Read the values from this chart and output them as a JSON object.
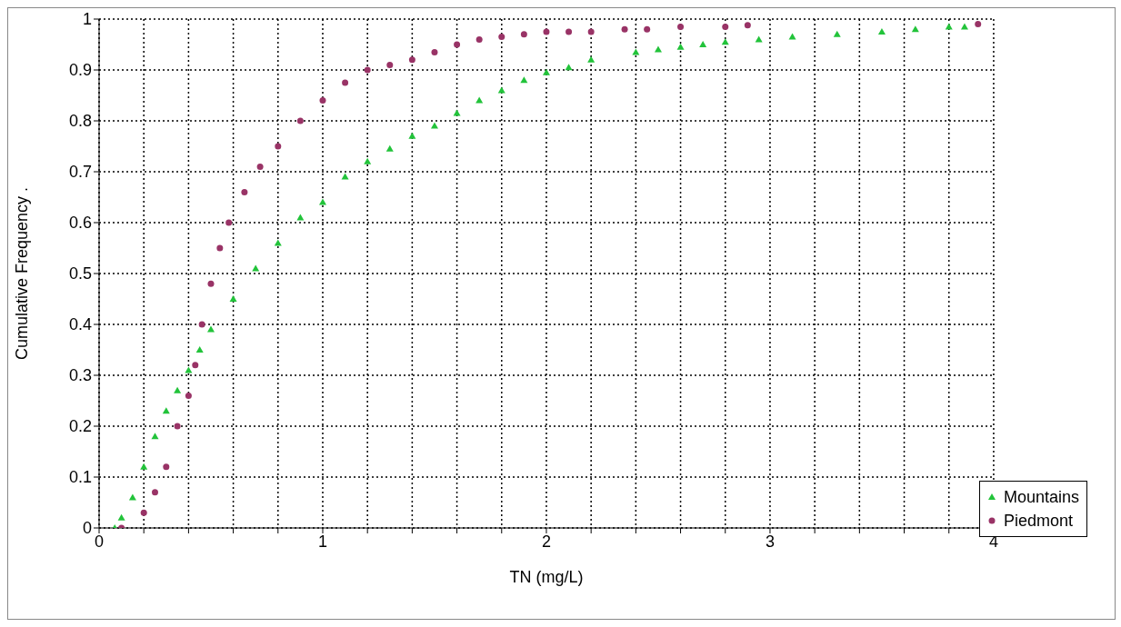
{
  "chart_data": {
    "type": "scatter",
    "xlabel": "TN (mg/L)",
    "ylabel": "Cumulative Frequency .",
    "xlim": [
      0,
      4
    ],
    "ylim": [
      0,
      1
    ],
    "xticks": [
      0,
      {
        "value": 0.2,
        "label": null
      },
      {
        "value": 0.4,
        "label": null
      },
      {
        "value": 0.6,
        "label": null
      },
      {
        "value": 0.8,
        "label": null
      },
      1,
      {
        "value": 1.2,
        "label": null
      },
      {
        "value": 1.4,
        "label": null
      },
      {
        "value": 1.6,
        "label": null
      },
      {
        "value": 1.8,
        "label": null
      },
      2,
      {
        "value": 2.2,
        "label": null
      },
      {
        "value": 2.4,
        "label": null
      },
      {
        "value": 2.6,
        "label": null
      },
      {
        "value": 2.8,
        "label": null
      },
      3,
      {
        "value": 3.2,
        "label": null
      },
      {
        "value": 3.4,
        "label": null
      },
      {
        "value": 3.6,
        "label": null
      },
      {
        "value": 3.8,
        "label": null
      },
      4
    ],
    "yticks": [
      0,
      0.1,
      0.2,
      0.3,
      0.4,
      0.5,
      0.6,
      0.7,
      0.8,
      0.9,
      1
    ],
    "grid": true,
    "legend": "bottom right",
    "series": [
      {
        "name": "Mountains",
        "color": "#22c33a",
        "marker": "triangle",
        "x": [
          0.07,
          0.1,
          0.15,
          0.2,
          0.25,
          0.3,
          0.35,
          0.4,
          0.45,
          0.5,
          0.6,
          0.7,
          0.8,
          0.9,
          1.0,
          1.1,
          1.2,
          1.3,
          1.4,
          1.5,
          1.6,
          1.7,
          1.8,
          1.9,
          2.0,
          2.1,
          2.2,
          2.4,
          2.5,
          2.6,
          2.7,
          2.8,
          2.95,
          3.1,
          3.3,
          3.5,
          3.65,
          3.8,
          3.87
        ],
        "values": [
          0,
          0.02,
          0.06,
          0.12,
          0.18,
          0.23,
          0.27,
          0.31,
          0.35,
          0.39,
          0.45,
          0.51,
          0.56,
          0.61,
          0.64,
          0.69,
          0.72,
          0.745,
          0.77,
          0.79,
          0.815,
          0.84,
          0.86,
          0.88,
          0.895,
          0.905,
          0.92,
          0.935,
          0.94,
          0.945,
          0.95,
          0.955,
          0.96,
          0.965,
          0.97,
          0.975,
          0.98,
          0.985,
          0.985
        ]
      },
      {
        "name": "Piedmont",
        "color": "#993366",
        "marker": "circle",
        "x": [
          0.1,
          0.2,
          0.25,
          0.3,
          0.35,
          0.4,
          0.43,
          0.46,
          0.5,
          0.54,
          0.58,
          0.65,
          0.72,
          0.8,
          0.9,
          1.0,
          1.1,
          1.2,
          1.3,
          1.4,
          1.5,
          1.6,
          1.7,
          1.8,
          1.9,
          2.0,
          2.1,
          2.2,
          2.35,
          2.45,
          2.6,
          2.8,
          2.9,
          3.93
        ],
        "values": [
          0,
          0.03,
          0.07,
          0.12,
          0.2,
          0.26,
          0.32,
          0.4,
          0.48,
          0.55,
          0.6,
          0.66,
          0.71,
          0.75,
          0.8,
          0.84,
          0.875,
          0.9,
          0.91,
          0.92,
          0.935,
          0.95,
          0.96,
          0.965,
          0.97,
          0.975,
          0.975,
          0.975,
          0.98,
          0.98,
          0.985,
          0.985,
          0.988,
          0.99
        ]
      }
    ]
  }
}
